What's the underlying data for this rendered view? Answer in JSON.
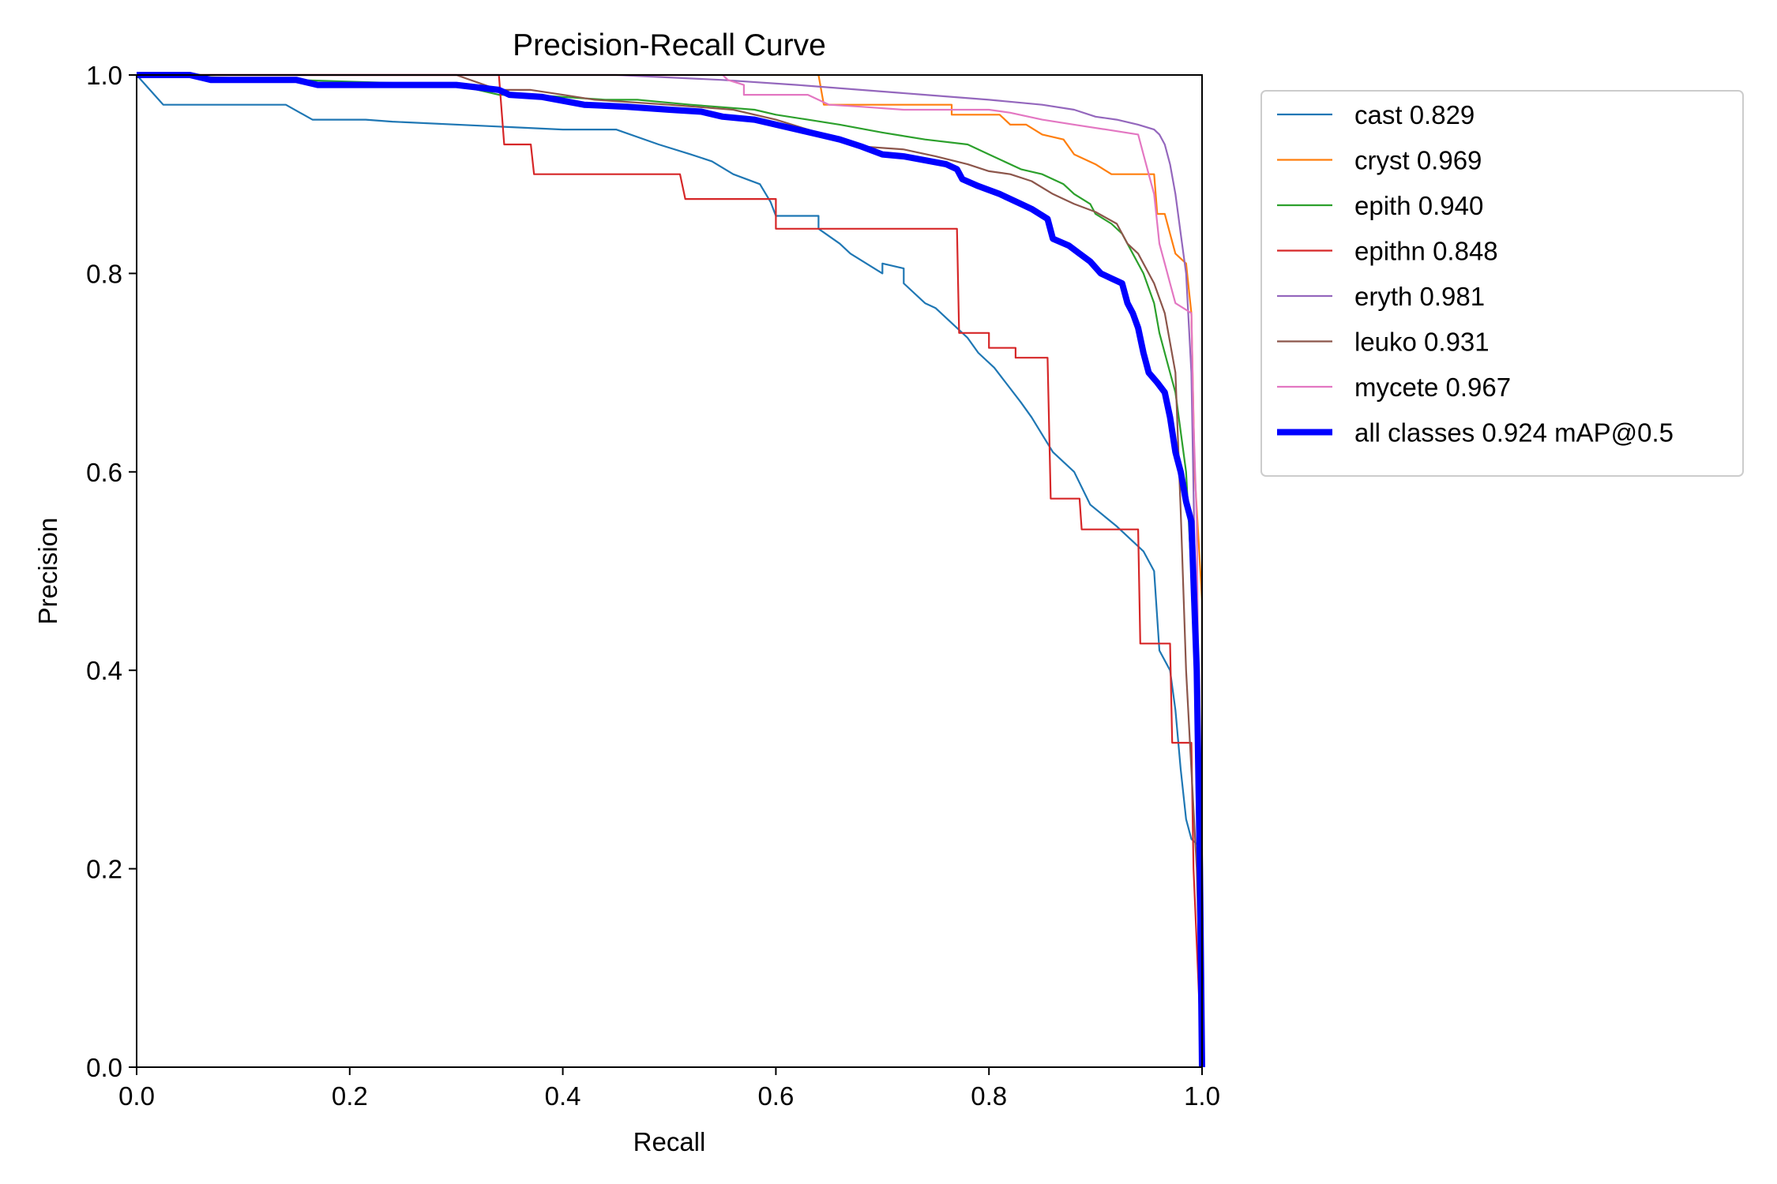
{
  "chart_data": {
    "type": "line",
    "title": "Precision-Recall Curve",
    "xlabel": "Recall",
    "ylabel": "Precision",
    "xlim": [
      0,
      1
    ],
    "ylim": [
      0,
      1
    ],
    "x_ticks": [
      "0.0",
      "0.2",
      "0.4",
      "0.6",
      "0.8",
      "1.0"
    ],
    "y_ticks": [
      "0.0",
      "0.2",
      "0.4",
      "0.6",
      "0.8",
      "1.0"
    ],
    "grid": false,
    "legend_position": "outside-top-right",
    "series": [
      {
        "name": "cast 0.829",
        "color": "#1f77b4",
        "width": "thin",
        "points": [
          [
            0.0,
            1.0
          ],
          [
            0.025,
            0.97
          ],
          [
            0.14,
            0.97
          ],
          [
            0.165,
            0.955
          ],
          [
            0.215,
            0.955
          ],
          [
            0.24,
            0.953
          ],
          [
            0.4,
            0.945
          ],
          [
            0.45,
            0.945
          ],
          [
            0.49,
            0.93
          ],
          [
            0.52,
            0.92
          ],
          [
            0.54,
            0.913
          ],
          [
            0.56,
            0.9
          ],
          [
            0.585,
            0.89
          ],
          [
            0.595,
            0.872
          ],
          [
            0.6,
            0.858
          ],
          [
            0.64,
            0.858
          ],
          [
            0.64,
            0.845
          ],
          [
            0.66,
            0.83
          ],
          [
            0.67,
            0.82
          ],
          [
            0.7,
            0.8
          ],
          [
            0.7,
            0.81
          ],
          [
            0.72,
            0.805
          ],
          [
            0.72,
            0.79
          ],
          [
            0.74,
            0.77
          ],
          [
            0.75,
            0.765
          ],
          [
            0.78,
            0.735
          ],
          [
            0.79,
            0.72
          ],
          [
            0.805,
            0.705
          ],
          [
            0.83,
            0.67
          ],
          [
            0.84,
            0.655
          ],
          [
            0.86,
            0.62
          ],
          [
            0.88,
            0.6
          ],
          [
            0.895,
            0.567
          ],
          [
            0.92,
            0.545
          ],
          [
            0.935,
            0.53
          ],
          [
            0.945,
            0.52
          ],
          [
            0.955,
            0.5
          ],
          [
            0.96,
            0.42
          ],
          [
            0.97,
            0.4
          ],
          [
            0.975,
            0.36
          ],
          [
            0.98,
            0.3
          ],
          [
            0.985,
            0.25
          ],
          [
            0.99,
            0.23
          ],
          [
            1.0,
            0.22
          ],
          [
            1.0,
            0.0
          ]
        ]
      },
      {
        "name": "cryst 0.969",
        "color": "#ff7f0e",
        "width": "thin",
        "points": [
          [
            0.0,
            1.0
          ],
          [
            0.64,
            1.0
          ],
          [
            0.645,
            0.97
          ],
          [
            0.765,
            0.97
          ],
          [
            0.765,
            0.96
          ],
          [
            0.81,
            0.96
          ],
          [
            0.82,
            0.95
          ],
          [
            0.835,
            0.95
          ],
          [
            0.85,
            0.94
          ],
          [
            0.87,
            0.935
          ],
          [
            0.88,
            0.92
          ],
          [
            0.9,
            0.91
          ],
          [
            0.915,
            0.9
          ],
          [
            0.955,
            0.9
          ],
          [
            0.958,
            0.86
          ],
          [
            0.965,
            0.86
          ],
          [
            0.97,
            0.84
          ],
          [
            0.975,
            0.82
          ],
          [
            0.985,
            0.81
          ],
          [
            0.99,
            0.76
          ],
          [
            0.993,
            0.6
          ],
          [
            1.0,
            0.47
          ],
          [
            1.0,
            0.0
          ]
        ]
      },
      {
        "name": "epith 0.940",
        "color": "#2ca02c",
        "width": "thin",
        "points": [
          [
            0.0,
            1.0
          ],
          [
            0.3,
            0.99
          ],
          [
            0.34,
            0.98
          ],
          [
            0.37,
            0.98
          ],
          [
            0.44,
            0.975
          ],
          [
            0.47,
            0.975
          ],
          [
            0.52,
            0.97
          ],
          [
            0.58,
            0.965
          ],
          [
            0.6,
            0.96
          ],
          [
            0.63,
            0.955
          ],
          [
            0.66,
            0.95
          ],
          [
            0.7,
            0.942
          ],
          [
            0.74,
            0.935
          ],
          [
            0.78,
            0.93
          ],
          [
            0.8,
            0.92
          ],
          [
            0.83,
            0.905
          ],
          [
            0.85,
            0.9
          ],
          [
            0.87,
            0.89
          ],
          [
            0.88,
            0.88
          ],
          [
            0.895,
            0.87
          ],
          [
            0.9,
            0.86
          ],
          [
            0.915,
            0.85
          ],
          [
            0.925,
            0.84
          ],
          [
            0.935,
            0.82
          ],
          [
            0.945,
            0.8
          ],
          [
            0.955,
            0.77
          ],
          [
            0.96,
            0.74
          ],
          [
            0.97,
            0.7
          ],
          [
            0.975,
            0.68
          ],
          [
            0.985,
            0.6
          ],
          [
            0.99,
            0.5
          ],
          [
            0.995,
            0.35
          ],
          [
            1.0,
            0.1
          ],
          [
            1.0,
            0.0
          ]
        ]
      },
      {
        "name": "epithn 0.848",
        "color": "#d62728",
        "width": "thin",
        "points": [
          [
            0.0,
            1.0
          ],
          [
            0.34,
            1.0
          ],
          [
            0.345,
            0.93
          ],
          [
            0.37,
            0.93
          ],
          [
            0.373,
            0.9
          ],
          [
            0.51,
            0.9
          ],
          [
            0.515,
            0.875
          ],
          [
            0.6,
            0.875
          ],
          [
            0.6,
            0.845
          ],
          [
            0.77,
            0.845
          ],
          [
            0.772,
            0.74
          ],
          [
            0.8,
            0.74
          ],
          [
            0.8,
            0.725
          ],
          [
            0.825,
            0.725
          ],
          [
            0.825,
            0.715
          ],
          [
            0.855,
            0.715
          ],
          [
            0.858,
            0.573
          ],
          [
            0.885,
            0.573
          ],
          [
            0.887,
            0.542
          ],
          [
            0.94,
            0.542
          ],
          [
            0.942,
            0.427
          ],
          [
            0.97,
            0.427
          ],
          [
            0.972,
            0.327
          ],
          [
            0.99,
            0.327
          ],
          [
            0.992,
            0.2
          ],
          [
            1.0,
            0.0
          ]
        ]
      },
      {
        "name": "eryth 0.981",
        "color": "#9467bd",
        "width": "thin",
        "points": [
          [
            0.0,
            1.0
          ],
          [
            0.45,
            1.0
          ],
          [
            0.55,
            0.995
          ],
          [
            0.62,
            0.99
          ],
          [
            0.68,
            0.985
          ],
          [
            0.74,
            0.98
          ],
          [
            0.8,
            0.975
          ],
          [
            0.85,
            0.97
          ],
          [
            0.88,
            0.965
          ],
          [
            0.9,
            0.958
          ],
          [
            0.92,
            0.955
          ],
          [
            0.94,
            0.95
          ],
          [
            0.955,
            0.945
          ],
          [
            0.96,
            0.94
          ],
          [
            0.965,
            0.93
          ],
          [
            0.97,
            0.91
          ],
          [
            0.975,
            0.88
          ],
          [
            0.98,
            0.84
          ],
          [
            0.985,
            0.8
          ],
          [
            0.99,
            0.7
          ],
          [
            0.995,
            0.4
          ],
          [
            1.0,
            0.0
          ]
        ]
      },
      {
        "name": "leuko 0.931",
        "color": "#8c564b",
        "width": "thin",
        "points": [
          [
            0.0,
            1.0
          ],
          [
            0.3,
            1.0
          ],
          [
            0.34,
            0.985
          ],
          [
            0.37,
            0.985
          ],
          [
            0.4,
            0.98
          ],
          [
            0.43,
            0.975
          ],
          [
            0.5,
            0.97
          ],
          [
            0.56,
            0.965
          ],
          [
            0.6,
            0.955
          ],
          [
            0.63,
            0.945
          ],
          [
            0.66,
            0.935
          ],
          [
            0.68,
            0.928
          ],
          [
            0.72,
            0.925
          ],
          [
            0.75,
            0.918
          ],
          [
            0.78,
            0.91
          ],
          [
            0.8,
            0.903
          ],
          [
            0.82,
            0.9
          ],
          [
            0.84,
            0.893
          ],
          [
            0.86,
            0.88
          ],
          [
            0.88,
            0.87
          ],
          [
            0.9,
            0.862
          ],
          [
            0.92,
            0.85
          ],
          [
            0.93,
            0.83
          ],
          [
            0.94,
            0.82
          ],
          [
            0.945,
            0.81
          ],
          [
            0.955,
            0.79
          ],
          [
            0.965,
            0.76
          ],
          [
            0.975,
            0.7
          ],
          [
            0.98,
            0.56
          ],
          [
            0.985,
            0.4
          ],
          [
            0.99,
            0.3
          ],
          [
            0.995,
            0.2
          ],
          [
            1.0,
            0.0
          ]
        ]
      },
      {
        "name": "mycete 0.967",
        "color": "#e377c2",
        "width": "thin",
        "points": [
          [
            0.0,
            1.0
          ],
          [
            0.55,
            1.0
          ],
          [
            0.555,
            0.995
          ],
          [
            0.57,
            0.99
          ],
          [
            0.57,
            0.98
          ],
          [
            0.63,
            0.98
          ],
          [
            0.65,
            0.97
          ],
          [
            0.68,
            0.968
          ],
          [
            0.72,
            0.965
          ],
          [
            0.8,
            0.965
          ],
          [
            0.82,
            0.962
          ],
          [
            0.85,
            0.955
          ],
          [
            0.88,
            0.95
          ],
          [
            0.91,
            0.945
          ],
          [
            0.94,
            0.94
          ],
          [
            0.945,
            0.92
          ],
          [
            0.95,
            0.9
          ],
          [
            0.955,
            0.88
          ],
          [
            0.96,
            0.83
          ],
          [
            0.965,
            0.81
          ],
          [
            0.97,
            0.79
          ],
          [
            0.975,
            0.77
          ],
          [
            0.99,
            0.76
          ],
          [
            0.992,
            0.65
          ],
          [
            0.995,
            0.55
          ],
          [
            1.0,
            0.0
          ]
        ]
      },
      {
        "name": "all classes 0.924 mAP@0.5",
        "color": "#0000ff",
        "width": "thick",
        "points": [
          [
            0.0,
            1.0
          ],
          [
            0.05,
            1.0
          ],
          [
            0.07,
            0.995
          ],
          [
            0.15,
            0.995
          ],
          [
            0.17,
            0.99
          ],
          [
            0.3,
            0.99
          ],
          [
            0.34,
            0.985
          ],
          [
            0.35,
            0.98
          ],
          [
            0.38,
            0.978
          ],
          [
            0.42,
            0.97
          ],
          [
            0.46,
            0.968
          ],
          [
            0.5,
            0.965
          ],
          [
            0.53,
            0.963
          ],
          [
            0.55,
            0.958
          ],
          [
            0.58,
            0.955
          ],
          [
            0.6,
            0.95
          ],
          [
            0.62,
            0.945
          ],
          [
            0.64,
            0.94
          ],
          [
            0.66,
            0.935
          ],
          [
            0.68,
            0.928
          ],
          [
            0.7,
            0.92
          ],
          [
            0.72,
            0.918
          ],
          [
            0.74,
            0.914
          ],
          [
            0.76,
            0.91
          ],
          [
            0.77,
            0.905
          ],
          [
            0.775,
            0.895
          ],
          [
            0.79,
            0.888
          ],
          [
            0.81,
            0.88
          ],
          [
            0.83,
            0.87
          ],
          [
            0.84,
            0.865
          ],
          [
            0.855,
            0.855
          ],
          [
            0.86,
            0.835
          ],
          [
            0.875,
            0.828
          ],
          [
            0.885,
            0.82
          ],
          [
            0.895,
            0.812
          ],
          [
            0.905,
            0.8
          ],
          [
            0.915,
            0.795
          ],
          [
            0.925,
            0.79
          ],
          [
            0.93,
            0.77
          ],
          [
            0.935,
            0.76
          ],
          [
            0.94,
            0.745
          ],
          [
            0.945,
            0.72
          ],
          [
            0.95,
            0.7
          ],
          [
            0.958,
            0.69
          ],
          [
            0.965,
            0.68
          ],
          [
            0.97,
            0.655
          ],
          [
            0.975,
            0.62
          ],
          [
            0.98,
            0.6
          ],
          [
            0.985,
            0.57
          ],
          [
            0.99,
            0.55
          ],
          [
            0.995,
            0.4
          ],
          [
            0.998,
            0.2
          ],
          [
            1.0,
            0.0
          ]
        ]
      }
    ]
  }
}
